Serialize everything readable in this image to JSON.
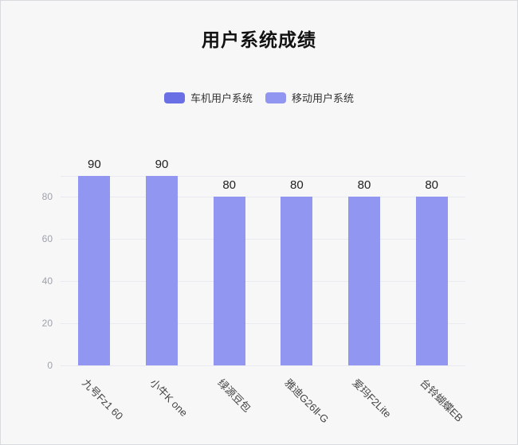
{
  "page": {
    "background": "#f7f7f8"
  },
  "header": {
    "title": "用户系统成绩"
  },
  "legend": {
    "items": [
      {
        "label": "车机用户系统",
        "color": "#6b6fe6"
      },
      {
        "label": "移动用户系统",
        "color": "#9196f0"
      }
    ]
  },
  "colors": {
    "bar_fill": "#9196f0",
    "gridline": "#e8e9f1",
    "ytick_text": "#9fa2aa",
    "xlabel_text": "#454545",
    "value_text": "#1f1f1f"
  },
  "chart_data": {
    "type": "bar",
    "title": "用户系统成绩",
    "categories": [
      "九号Fz1 60",
      "小牛K one",
      "绿源豆包",
      "雅迪G26Ⅱ-G",
      "爱玛F2Lite",
      "台铃蝴蝶EB"
    ],
    "series": [
      {
        "name": "车机用户系统",
        "color": "#6b6fe6",
        "values": []
      },
      {
        "name": "移动用户系统",
        "color": "#9196f0",
        "values": [
          90,
          90,
          80,
          80,
          80,
          80
        ]
      }
    ],
    "value_labels": [
      "90",
      "90",
      "80",
      "80",
      "80",
      "80"
    ],
    "xlabel": "",
    "ylabel": "",
    "ylim": [
      0,
      90
    ],
    "yticks": [
      0,
      20,
      40,
      60,
      80
    ],
    "grid": true,
    "legend_position": "top-center",
    "x_label_rotation": 45
  }
}
